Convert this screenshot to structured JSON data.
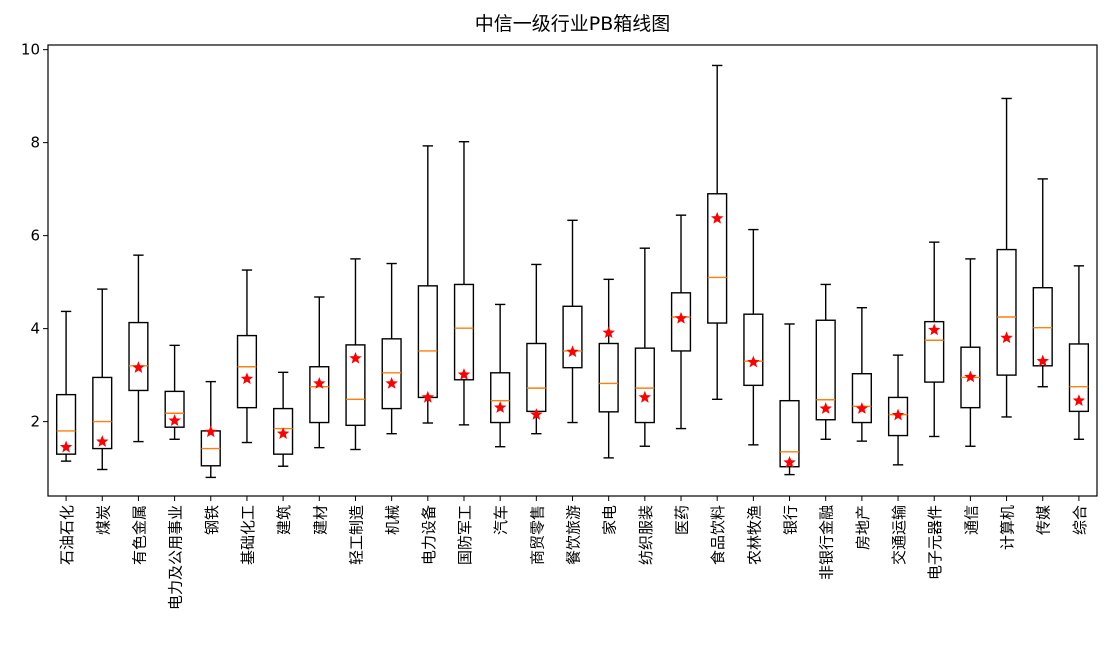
{
  "chart_data": {
    "type": "boxplot",
    "title": "中信一级行业PB箱线图",
    "xlabel": "",
    "ylabel": "",
    "ylim": [
      0.4,
      10.1
    ],
    "yticks": [
      2,
      4,
      6,
      8,
      10
    ],
    "colors": {
      "box": "#000000",
      "median": "#ff7f0e",
      "mean": "#ff0000"
    },
    "categories": [
      "石油石化",
      "煤炭",
      "有色金属",
      "电力及公用事业",
      "钢铁",
      "基础化工",
      "建筑",
      "建材",
      "轻工制造",
      "机械",
      "电力设备",
      "国防军工",
      "汽车",
      "商贸零售",
      "餐饮旅游",
      "家电",
      "纺织服装",
      "医药",
      "食品饮料",
      "农林牧渔",
      "银行",
      "非银行金融",
      "房地产",
      "交通运输",
      "电子元器件",
      "通信",
      "计算机",
      "传媒",
      "综合"
    ],
    "boxes": [
      {
        "min": 1.15,
        "q1": 1.3,
        "median": 1.8,
        "q3": 2.58,
        "max": 4.37,
        "mean": 1.45
      },
      {
        "min": 0.97,
        "q1": 1.42,
        "median": 2.0,
        "q3": 2.95,
        "max": 4.85,
        "mean": 1.57
      },
      {
        "min": 1.57,
        "q1": 2.67,
        "median": 3.2,
        "q3": 4.13,
        "max": 5.58,
        "mean": 3.16
      },
      {
        "min": 1.62,
        "q1": 1.88,
        "median": 2.18,
        "q3": 2.65,
        "max": 3.64,
        "mean": 2.02
      },
      {
        "min": 0.8,
        "q1": 1.05,
        "median": 1.42,
        "q3": 1.8,
        "max": 2.86,
        "mean": 1.78
      },
      {
        "min": 1.55,
        "q1": 2.3,
        "median": 3.18,
        "q3": 3.85,
        "max": 5.26,
        "mean": 2.92
      },
      {
        "min": 1.04,
        "q1": 1.3,
        "median": 1.85,
        "q3": 2.28,
        "max": 3.06,
        "mean": 1.74
      },
      {
        "min": 1.44,
        "q1": 1.98,
        "median": 2.75,
        "q3": 3.18,
        "max": 4.68,
        "mean": 2.82
      },
      {
        "min": 1.4,
        "q1": 1.92,
        "median": 2.48,
        "q3": 3.65,
        "max": 5.5,
        "mean": 3.36
      },
      {
        "min": 1.74,
        "q1": 2.28,
        "median": 3.05,
        "q3": 3.78,
        "max": 5.4,
        "mean": 2.82
      },
      {
        "min": 1.97,
        "q1": 2.52,
        "median": 3.52,
        "q3": 4.92,
        "max": 7.93,
        "mean": 2.52
      },
      {
        "min": 1.93,
        "q1": 2.9,
        "median": 4.01,
        "q3": 4.95,
        "max": 8.02,
        "mean": 3.01
      },
      {
        "min": 1.46,
        "q1": 1.98,
        "median": 2.45,
        "q3": 3.05,
        "max": 4.52,
        "mean": 2.3
      },
      {
        "min": 1.74,
        "q1": 2.22,
        "median": 2.72,
        "q3": 3.68,
        "max": 5.38,
        "mean": 2.15
      },
      {
        "min": 1.98,
        "q1": 3.16,
        "median": 3.52,
        "q3": 4.48,
        "max": 6.33,
        "mean": 3.5
      },
      {
        "min": 1.22,
        "q1": 2.21,
        "median": 2.82,
        "q3": 3.68,
        "max": 5.06,
        "mean": 3.91
      },
      {
        "min": 1.47,
        "q1": 1.98,
        "median": 2.72,
        "q3": 3.58,
        "max": 5.73,
        "mean": 2.52
      },
      {
        "min": 1.85,
        "q1": 3.52,
        "median": 4.25,
        "q3": 4.77,
        "max": 6.44,
        "mean": 4.22
      },
      {
        "min": 2.48,
        "q1": 4.12,
        "median": 5.1,
        "q3": 6.9,
        "max": 9.66,
        "mean": 6.37
      },
      {
        "min": 1.5,
        "q1": 2.78,
        "median": 3.3,
        "q3": 4.31,
        "max": 6.13,
        "mean": 3.28
      },
      {
        "min": 0.86,
        "q1": 1.03,
        "median": 1.35,
        "q3": 2.45,
        "max": 4.1,
        "mean": 1.12
      },
      {
        "min": 1.62,
        "q1": 2.04,
        "median": 2.47,
        "q3": 4.18,
        "max": 4.95,
        "mean": 2.28
      },
      {
        "min": 1.58,
        "q1": 1.98,
        "median": 2.33,
        "q3": 3.03,
        "max": 4.45,
        "mean": 2.28
      },
      {
        "min": 1.07,
        "q1": 1.7,
        "median": 2.15,
        "q3": 2.52,
        "max": 3.43,
        "mean": 2.14
      },
      {
        "min": 1.68,
        "q1": 2.85,
        "median": 3.75,
        "q3": 4.15,
        "max": 5.86,
        "mean": 3.97
      },
      {
        "min": 1.47,
        "q1": 2.3,
        "median": 2.95,
        "q3": 3.6,
        "max": 5.5,
        "mean": 2.96
      },
      {
        "min": 2.1,
        "q1": 3.0,
        "median": 4.25,
        "q3": 5.7,
        "max": 8.95,
        "mean": 3.8
      },
      {
        "min": 2.75,
        "q1": 3.2,
        "median": 4.02,
        "q3": 4.88,
        "max": 7.22,
        "mean": 3.3
      },
      {
        "min": 1.62,
        "q1": 2.22,
        "median": 2.75,
        "q3": 3.67,
        "max": 5.35,
        "mean": 2.45
      }
    ]
  }
}
